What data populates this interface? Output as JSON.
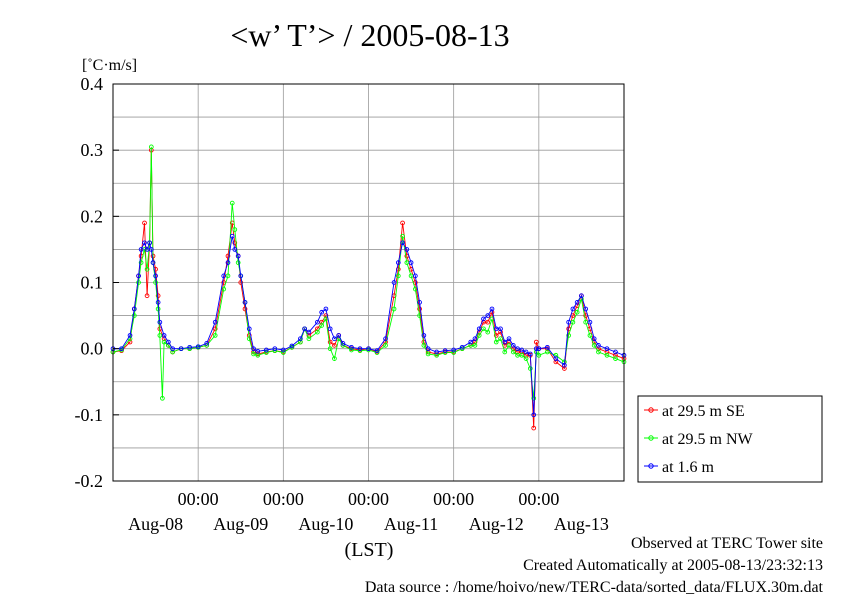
{
  "chart_data": {
    "type": "line",
    "title": "<w’ T’> / 2005-08-13",
    "ylabel": "[˚C·m/s]",
    "xlabel": "(LST)",
    "ylim": [
      -0.2,
      0.4
    ],
    "ytick_labels": [
      "0.4",
      "0.3",
      "0.2",
      "0.1",
      "0.0",
      "-0.1",
      "-0.2"
    ],
    "yticks": [
      0.4,
      0.3,
      0.2,
      0.1,
      0.0,
      -0.1,
      -0.2
    ],
    "xlim": [
      0,
      6
    ],
    "x_unit": "days from 2005-08-07 12:00 LST",
    "x_time_labels": [
      "00:00",
      "00:00",
      "00:00",
      "00:00",
      "00:00"
    ],
    "x_time_positions": [
      1,
      2,
      3,
      4,
      5
    ],
    "x_date_labels": [
      "Aug-08",
      "Aug-09",
      "Aug-10",
      "Aug-11",
      "Aug-12",
      "Aug-13"
    ],
    "x_date_positions": [
      0.5,
      1.5,
      2.5,
      3.5,
      4.5,
      5.5
    ],
    "grid": true,
    "legend_position": "right-bottom outside",
    "series": [
      {
        "name": "at 29.5 m SE",
        "color": "#ff0000",
        "points": [
          [
            0.0,
            -0.005
          ],
          [
            0.1,
            -0.003
          ],
          [
            0.2,
            0.01
          ],
          [
            0.25,
            0.06
          ],
          [
            0.3,
            0.11
          ],
          [
            0.33,
            0.14
          ],
          [
            0.37,
            0.19
          ],
          [
            0.4,
            0.08
          ],
          [
            0.43,
            0.16
          ],
          [
            0.45,
            0.3
          ],
          [
            0.47,
            0.14
          ],
          [
            0.5,
            0.12
          ],
          [
            0.53,
            0.08
          ],
          [
            0.55,
            0.03
          ],
          [
            0.6,
            0.015
          ],
          [
            0.65,
            0.005
          ],
          [
            0.7,
            -0.005
          ],
          [
            0.8,
            0.0
          ],
          [
            0.9,
            0.0
          ],
          [
            1.0,
            0.002
          ],
          [
            1.1,
            0.005
          ],
          [
            1.2,
            0.03
          ],
          [
            1.3,
            0.1
          ],
          [
            1.35,
            0.14
          ],
          [
            1.4,
            0.19
          ],
          [
            1.43,
            0.16
          ],
          [
            1.47,
            0.14
          ],
          [
            1.5,
            0.1
          ],
          [
            1.55,
            0.06
          ],
          [
            1.6,
            0.02
          ],
          [
            1.65,
            -0.005
          ],
          [
            1.7,
            -0.008
          ],
          [
            1.8,
            -0.005
          ],
          [
            1.9,
            -0.003
          ],
          [
            2.0,
            -0.005
          ],
          [
            2.1,
            0.002
          ],
          [
            2.2,
            0.01
          ],
          [
            2.25,
            0.03
          ],
          [
            2.3,
            0.02
          ],
          [
            2.4,
            0.03
          ],
          [
            2.45,
            0.04
          ],
          [
            2.5,
            0.05
          ],
          [
            2.55,
            0.01
          ],
          [
            2.6,
            0.005
          ],
          [
            2.65,
            0.02
          ],
          [
            2.7,
            0.005
          ],
          [
            2.8,
            0.0
          ],
          [
            2.9,
            -0.002
          ],
          [
            3.0,
            0.0
          ],
          [
            3.1,
            -0.005
          ],
          [
            3.2,
            0.01
          ],
          [
            3.3,
            0.08
          ],
          [
            3.35,
            0.12
          ],
          [
            3.4,
            0.19
          ],
          [
            3.45,
            0.14
          ],
          [
            3.5,
            0.12
          ],
          [
            3.55,
            0.1
          ],
          [
            3.6,
            0.06
          ],
          [
            3.65,
            0.01
          ],
          [
            3.7,
            -0.005
          ],
          [
            3.8,
            -0.008
          ],
          [
            3.9,
            -0.005
          ],
          [
            4.0,
            -0.005
          ],
          [
            4.1,
            0.0
          ],
          [
            4.2,
            0.005
          ],
          [
            4.25,
            0.01
          ],
          [
            4.3,
            0.025
          ],
          [
            4.35,
            0.04
          ],
          [
            4.4,
            0.04
          ],
          [
            4.45,
            0.055
          ],
          [
            4.5,
            0.02
          ],
          [
            4.55,
            0.025
          ],
          [
            4.6,
            0.005
          ],
          [
            4.65,
            0.01
          ],
          [
            4.7,
            0.0
          ],
          [
            4.75,
            -0.005
          ],
          [
            4.8,
            -0.005
          ],
          [
            4.85,
            -0.01
          ],
          [
            4.9,
            -0.01
          ],
          [
            4.94,
            -0.12
          ],
          [
            4.97,
            0.01
          ],
          [
            5.0,
            0.0
          ],
          [
            5.1,
            0.0
          ],
          [
            5.2,
            -0.02
          ],
          [
            5.3,
            -0.03
          ],
          [
            5.35,
            0.03
          ],
          [
            5.4,
            0.05
          ],
          [
            5.45,
            0.065
          ],
          [
            5.5,
            0.08
          ],
          [
            5.55,
            0.05
          ],
          [
            5.6,
            0.03
          ],
          [
            5.65,
            0.01
          ],
          [
            5.7,
            0.0
          ],
          [
            5.8,
            -0.005
          ],
          [
            5.9,
            -0.01
          ],
          [
            6.0,
            -0.015
          ]
        ]
      },
      {
        "name": "at 29.5 m NW",
        "color": "#00ff00",
        "points": [
          [
            0.0,
            -0.005
          ],
          [
            0.1,
            -0.002
          ],
          [
            0.2,
            0.015
          ],
          [
            0.25,
            0.05
          ],
          [
            0.3,
            0.1
          ],
          [
            0.33,
            0.13
          ],
          [
            0.37,
            0.15
          ],
          [
            0.4,
            0.12
          ],
          [
            0.43,
            0.16
          ],
          [
            0.45,
            0.305
          ],
          [
            0.47,
            0.13
          ],
          [
            0.5,
            0.1
          ],
          [
            0.53,
            0.06
          ],
          [
            0.55,
            0.02
          ],
          [
            0.58,
            -0.075
          ],
          [
            0.6,
            0.01
          ],
          [
            0.65,
            0.005
          ],
          [
            0.7,
            -0.005
          ],
          [
            0.8,
            0.0
          ],
          [
            0.9,
            0.0
          ],
          [
            1.0,
            0.002
          ],
          [
            1.1,
            0.005
          ],
          [
            1.2,
            0.02
          ],
          [
            1.3,
            0.09
          ],
          [
            1.35,
            0.11
          ],
          [
            1.4,
            0.22
          ],
          [
            1.43,
            0.18
          ],
          [
            1.47,
            0.13
          ],
          [
            1.5,
            0.11
          ],
          [
            1.55,
            0.07
          ],
          [
            1.6,
            0.015
          ],
          [
            1.65,
            -0.008
          ],
          [
            1.7,
            -0.01
          ],
          [
            1.8,
            -0.006
          ],
          [
            1.9,
            -0.003
          ],
          [
            2.0,
            -0.006
          ],
          [
            2.1,
            0.002
          ],
          [
            2.2,
            0.01
          ],
          [
            2.25,
            0.03
          ],
          [
            2.3,
            0.015
          ],
          [
            2.4,
            0.025
          ],
          [
            2.45,
            0.035
          ],
          [
            2.5,
            0.045
          ],
          [
            2.55,
            0.0
          ],
          [
            2.6,
            -0.015
          ],
          [
            2.65,
            0.015
          ],
          [
            2.7,
            0.005
          ],
          [
            2.8,
            -0.002
          ],
          [
            2.9,
            -0.003
          ],
          [
            3.0,
            -0.002
          ],
          [
            3.1,
            -0.006
          ],
          [
            3.2,
            0.005
          ],
          [
            3.3,
            0.06
          ],
          [
            3.35,
            0.11
          ],
          [
            3.4,
            0.17
          ],
          [
            3.45,
            0.13
          ],
          [
            3.5,
            0.11
          ],
          [
            3.55,
            0.09
          ],
          [
            3.6,
            0.05
          ],
          [
            3.65,
            0.005
          ],
          [
            3.7,
            -0.008
          ],
          [
            3.8,
            -0.01
          ],
          [
            3.9,
            -0.006
          ],
          [
            4.0,
            -0.006
          ],
          [
            4.1,
            0.0
          ],
          [
            4.2,
            0.005
          ],
          [
            4.25,
            0.005
          ],
          [
            4.3,
            0.02
          ],
          [
            4.35,
            0.03
          ],
          [
            4.4,
            0.025
          ],
          [
            4.45,
            0.045
          ],
          [
            4.5,
            0.01
          ],
          [
            4.55,
            0.015
          ],
          [
            4.6,
            -0.005
          ],
          [
            4.65,
            0.005
          ],
          [
            4.7,
            -0.005
          ],
          [
            4.75,
            -0.01
          ],
          [
            4.8,
            -0.01
          ],
          [
            4.85,
            -0.015
          ],
          [
            4.9,
            -0.03
          ],
          [
            4.94,
            -0.075
          ],
          [
            4.97,
            -0.005
          ],
          [
            5.0,
            -0.01
          ],
          [
            5.1,
            -0.005
          ],
          [
            5.2,
            -0.01
          ],
          [
            5.3,
            -0.02
          ],
          [
            5.35,
            0.02
          ],
          [
            5.4,
            0.04
          ],
          [
            5.45,
            0.055
          ],
          [
            5.5,
            0.075
          ],
          [
            5.55,
            0.04
          ],
          [
            5.6,
            0.02
          ],
          [
            5.65,
            0.005
          ],
          [
            5.7,
            -0.005
          ],
          [
            5.8,
            -0.01
          ],
          [
            5.9,
            -0.015
          ],
          [
            6.0,
            -0.02
          ]
        ]
      },
      {
        "name": "at 1.6 m",
        "color": "#0000ff",
        "points": [
          [
            0.0,
            0.0
          ],
          [
            0.1,
            0.0
          ],
          [
            0.2,
            0.02
          ],
          [
            0.25,
            0.06
          ],
          [
            0.3,
            0.11
          ],
          [
            0.33,
            0.15
          ],
          [
            0.37,
            0.16
          ],
          [
            0.4,
            0.15
          ],
          [
            0.43,
            0.16
          ],
          [
            0.45,
            0.15
          ],
          [
            0.47,
            0.13
          ],
          [
            0.5,
            0.11
          ],
          [
            0.53,
            0.07
          ],
          [
            0.55,
            0.04
          ],
          [
            0.6,
            0.02
          ],
          [
            0.65,
            0.01
          ],
          [
            0.7,
            0.0
          ],
          [
            0.8,
            0.0
          ],
          [
            0.9,
            0.002
          ],
          [
            1.0,
            0.003
          ],
          [
            1.1,
            0.008
          ],
          [
            1.2,
            0.04
          ],
          [
            1.3,
            0.11
          ],
          [
            1.35,
            0.13
          ],
          [
            1.4,
            0.17
          ],
          [
            1.43,
            0.15
          ],
          [
            1.47,
            0.14
          ],
          [
            1.5,
            0.11
          ],
          [
            1.55,
            0.07
          ],
          [
            1.6,
            0.03
          ],
          [
            1.65,
            0.0
          ],
          [
            1.7,
            -0.004
          ],
          [
            1.8,
            -0.002
          ],
          [
            1.9,
            0.0
          ],
          [
            2.0,
            -0.002
          ],
          [
            2.1,
            0.004
          ],
          [
            2.2,
            0.015
          ],
          [
            2.25,
            0.03
          ],
          [
            2.3,
            0.025
          ],
          [
            2.4,
            0.04
          ],
          [
            2.45,
            0.055
          ],
          [
            2.5,
            0.06
          ],
          [
            2.55,
            0.03
          ],
          [
            2.6,
            0.015
          ],
          [
            2.65,
            0.02
          ],
          [
            2.7,
            0.008
          ],
          [
            2.8,
            0.002
          ],
          [
            2.9,
            0.0
          ],
          [
            3.0,
            0.0
          ],
          [
            3.1,
            -0.003
          ],
          [
            3.2,
            0.015
          ],
          [
            3.3,
            0.1
          ],
          [
            3.35,
            0.13
          ],
          [
            3.4,
            0.16
          ],
          [
            3.45,
            0.15
          ],
          [
            3.5,
            0.13
          ],
          [
            3.55,
            0.11
          ],
          [
            3.6,
            0.07
          ],
          [
            3.65,
            0.02
          ],
          [
            3.7,
            0.0
          ],
          [
            3.8,
            -0.005
          ],
          [
            3.9,
            -0.003
          ],
          [
            4.0,
            -0.002
          ],
          [
            4.1,
            0.002
          ],
          [
            4.2,
            0.01
          ],
          [
            4.25,
            0.015
          ],
          [
            4.3,
            0.03
          ],
          [
            4.35,
            0.045
          ],
          [
            4.4,
            0.05
          ],
          [
            4.45,
            0.06
          ],
          [
            4.5,
            0.03
          ],
          [
            4.55,
            0.03
          ],
          [
            4.6,
            0.01
          ],
          [
            4.65,
            0.015
          ],
          [
            4.7,
            0.005
          ],
          [
            4.75,
            0.0
          ],
          [
            4.8,
            -0.002
          ],
          [
            4.85,
            -0.005
          ],
          [
            4.9,
            -0.008
          ],
          [
            4.94,
            -0.1
          ],
          [
            4.97,
            0.0
          ],
          [
            5.0,
            0.0
          ],
          [
            5.1,
            0.002
          ],
          [
            5.2,
            -0.015
          ],
          [
            5.3,
            -0.025
          ],
          [
            5.35,
            0.04
          ],
          [
            5.4,
            0.06
          ],
          [
            5.45,
            0.07
          ],
          [
            5.5,
            0.08
          ],
          [
            5.55,
            0.06
          ],
          [
            5.6,
            0.04
          ],
          [
            5.65,
            0.015
          ],
          [
            5.7,
            0.005
          ],
          [
            5.8,
            0.0
          ],
          [
            5.9,
            -0.005
          ],
          [
            6.0,
            -0.01
          ]
        ]
      }
    ]
  },
  "footer": {
    "line1": "Observed at TERC Tower site",
    "line2": "Created Automatically at 2005-08-13/23:32:13",
    "line3": "Data source : /home/hoivo/new/TERC-data/sorted_data/FLUX.30m.dat"
  }
}
